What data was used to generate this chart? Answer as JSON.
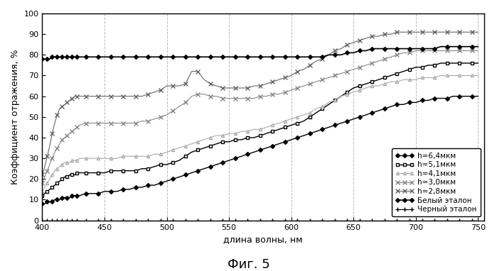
{
  "title": "Фиг. 5",
  "xlabel": "длина волны, нм",
  "ylabel": "Коэффициент отражения, %",
  "xlim": [
    400,
    755
  ],
  "ylim": [
    0,
    100
  ],
  "xticks": [
    400,
    450,
    500,
    550,
    600,
    650,
    700,
    750
  ],
  "yticks": [
    0,
    10,
    20,
    30,
    40,
    50,
    60,
    70,
    80,
    90,
    100
  ],
  "background_color": "#ffffff",
  "series": [
    {
      "label": "h=6,4мкм",
      "color": "#000000",
      "marker": "D",
      "markersize": 3,
      "linewidth": 1.0,
      "markerfacecolor": "#000000",
      "linestyle": "-",
      "points_x": [
        400,
        402,
        404,
        406,
        408,
        410,
        412,
        414,
        416,
        418,
        420,
        422,
        424,
        426,
        428,
        430,
        435,
        440,
        445,
        450,
        455,
        460,
        465,
        470,
        475,
        480,
        485,
        490,
        495,
        500,
        505,
        510,
        515,
        520,
        525,
        530,
        535,
        540,
        545,
        550,
        555,
        560,
        565,
        570,
        575,
        580,
        585,
        590,
        595,
        600,
        605,
        610,
        615,
        620,
        625,
        630,
        635,
        640,
        645,
        650,
        655,
        660,
        665,
        670,
        675,
        680,
        685,
        690,
        695,
        700,
        705,
        710,
        715,
        720,
        725,
        730,
        735,
        740,
        745,
        750
      ],
      "points_y": [
        8,
        8,
        9,
        9,
        9,
        10,
        10,
        10,
        11,
        11,
        11,
        11,
        12,
        12,
        12,
        12,
        13,
        13,
        13,
        14,
        14,
        14,
        15,
        15,
        16,
        16,
        17,
        17,
        18,
        19,
        20,
        21,
        22,
        23,
        24,
        25,
        26,
        27,
        28,
        29,
        30,
        31,
        32,
        33,
        34,
        35,
        36,
        37,
        38,
        39,
        40,
        41,
        42,
        43,
        44,
        45,
        46,
        47,
        48,
        49,
        50,
        51,
        52,
        53,
        54,
        55,
        56,
        56,
        57,
        57,
        58,
        58,
        59,
        59,
        59,
        60,
        60,
        60,
        60,
        60
      ]
    },
    {
      "label": "h=5,1мкм",
      "color": "#000000",
      "marker": "s",
      "markersize": 3,
      "linewidth": 1.0,
      "markerfacecolor": "white",
      "linestyle": "-",
      "points_x": [
        400,
        402,
        404,
        406,
        408,
        410,
        412,
        414,
        416,
        418,
        420,
        422,
        424,
        426,
        428,
        430,
        435,
        440,
        445,
        450,
        455,
        460,
        465,
        470,
        475,
        480,
        485,
        490,
        495,
        500,
        505,
        510,
        515,
        520,
        525,
        530,
        535,
        540,
        545,
        550,
        555,
        560,
        565,
        570,
        575,
        580,
        585,
        590,
        595,
        600,
        605,
        610,
        615,
        620,
        625,
        630,
        635,
        640,
        645,
        650,
        655,
        660,
        665,
        670,
        675,
        680,
        685,
        690,
        695,
        700,
        705,
        710,
        715,
        720,
        725,
        730,
        735,
        740,
        745,
        750
      ],
      "points_y": [
        12,
        13,
        14,
        15,
        16,
        17,
        18,
        19,
        20,
        21,
        21,
        22,
        22,
        22,
        23,
        23,
        23,
        23,
        23,
        23,
        24,
        24,
        24,
        24,
        24,
        25,
        25,
        26,
        27,
        27,
        28,
        29,
        31,
        33,
        34,
        35,
        36,
        37,
        38,
        38,
        39,
        39,
        40,
        40,
        41,
        42,
        43,
        44,
        45,
        46,
        47,
        48,
        50,
        52,
        54,
        56,
        58,
        60,
        62,
        64,
        65,
        66,
        67,
        68,
        69,
        70,
        71,
        72,
        73,
        74,
        74,
        75,
        75,
        76,
        76,
        76,
        76,
        76,
        76,
        76
      ]
    },
    {
      "label": "h=4,1мкм",
      "color": "#aaaaaa",
      "marker": "^",
      "markersize": 3,
      "linewidth": 0.8,
      "markerfacecolor": "white",
      "linestyle": "-",
      "points_x": [
        400,
        402,
        404,
        406,
        408,
        410,
        412,
        414,
        416,
        418,
        420,
        422,
        424,
        426,
        428,
        430,
        435,
        440,
        445,
        450,
        455,
        460,
        465,
        470,
        475,
        480,
        485,
        490,
        495,
        500,
        505,
        510,
        515,
        520,
        525,
        530,
        535,
        540,
        545,
        550,
        555,
        560,
        565,
        570,
        575,
        580,
        585,
        590,
        595,
        600,
        605,
        610,
        615,
        620,
        625,
        630,
        635,
        640,
        645,
        650,
        655,
        660,
        665,
        670,
        675,
        680,
        685,
        690,
        695,
        700,
        705,
        710,
        715,
        720,
        725,
        730,
        735,
        740,
        745,
        750
      ],
      "points_y": [
        14,
        16,
        18,
        20,
        22,
        24,
        25,
        26,
        27,
        28,
        28,
        28,
        29,
        29,
        29,
        30,
        30,
        30,
        30,
        30,
        30,
        30,
        31,
        31,
        31,
        31,
        31,
        32,
        32,
        33,
        34,
        35,
        36,
        37,
        38,
        39,
        40,
        41,
        41,
        42,
        42,
        43,
        43,
        44,
        44,
        45,
        46,
        47,
        48,
        49,
        50,
        51,
        52,
        54,
        55,
        57,
        58,
        60,
        61,
        62,
        63,
        64,
        65,
        65,
        66,
        67,
        67,
        68,
        68,
        68,
        69,
        69,
        69,
        70,
        70,
        70,
        70,
        70,
        70,
        70
      ]
    },
    {
      "label": "h=3,0мкм",
      "color": "#888888",
      "marker": "x",
      "markersize": 4,
      "linewidth": 0.8,
      "markerfacecolor": "#888888",
      "linestyle": "-",
      "points_x": [
        400,
        402,
        404,
        406,
        408,
        410,
        412,
        414,
        416,
        418,
        420,
        422,
        424,
        426,
        428,
        430,
        435,
        440,
        445,
        450,
        455,
        460,
        465,
        470,
        475,
        480,
        485,
        490,
        495,
        500,
        505,
        510,
        515,
        520,
        525,
        530,
        535,
        540,
        545,
        550,
        555,
        560,
        565,
        570,
        575,
        580,
        585,
        590,
        595,
        600,
        605,
        610,
        615,
        620,
        625,
        630,
        635,
        640,
        645,
        650,
        655,
        660,
        665,
        670,
        675,
        680,
        685,
        690,
        695,
        700,
        705,
        710,
        715,
        720,
        725,
        730,
        735,
        740,
        745,
        750
      ],
      "points_y": [
        18,
        21,
        24,
        27,
        30,
        33,
        35,
        37,
        39,
        40,
        41,
        42,
        43,
        44,
        45,
        46,
        47,
        47,
        47,
        47,
        47,
        47,
        47,
        47,
        47,
        48,
        48,
        49,
        50,
        51,
        53,
        55,
        57,
        60,
        61,
        61,
        60,
        60,
        59,
        59,
        59,
        59,
        59,
        59,
        60,
        60,
        61,
        61,
        62,
        63,
        64,
        65,
        66,
        67,
        68,
        69,
        70,
        71,
        72,
        73,
        74,
        75,
        76,
        77,
        78,
        79,
        80,
        81,
        81,
        82,
        82,
        82,
        82,
        82,
        82,
        82,
        82,
        82,
        82,
        82
      ]
    },
    {
      "label": "h=2,8мкм",
      "color": "#666666",
      "marker": "x",
      "markersize": 4,
      "linewidth": 0.8,
      "markerfacecolor": "#666666",
      "linestyle": "-",
      "points_x": [
        400,
        402,
        404,
        406,
        408,
        410,
        412,
        414,
        416,
        418,
        420,
        422,
        424,
        426,
        428,
        430,
        435,
        440,
        445,
        450,
        455,
        460,
        465,
        470,
        475,
        480,
        485,
        490,
        495,
        500,
        505,
        510,
        515,
        520,
        525,
        530,
        535,
        540,
        545,
        550,
        555,
        560,
        565,
        570,
        575,
        580,
        585,
        590,
        595,
        600,
        605,
        610,
        615,
        620,
        625,
        630,
        635,
        640,
        645,
        650,
        655,
        660,
        665,
        670,
        675,
        680,
        685,
        690,
        695,
        700,
        705,
        710,
        715,
        720,
        725,
        730,
        735,
        740,
        745,
        750
      ],
      "points_y": [
        22,
        26,
        31,
        36,
        42,
        47,
        51,
        54,
        55,
        56,
        57,
        58,
        59,
        60,
        60,
        60,
        60,
        60,
        60,
        60,
        60,
        60,
        60,
        60,
        60,
        60,
        61,
        62,
        63,
        65,
        65,
        65,
        66,
        72,
        72,
        68,
        66,
        65,
        64,
        64,
        64,
        64,
        64,
        65,
        65,
        66,
        67,
        68,
        69,
        70,
        72,
        73,
        75,
        77,
        78,
        80,
        82,
        83,
        85,
        86,
        87,
        88,
        89,
        89,
        90,
        90,
        91,
        91,
        91,
        91,
        91,
        91,
        91,
        91,
        91,
        91,
        91,
        91,
        91,
        91
      ]
    },
    {
      "label": "Белый эталон",
      "color": "#000000",
      "marker": "D",
      "markersize": 3,
      "linewidth": 1.2,
      "markerfacecolor": "#000000",
      "linestyle": "-",
      "points_x": [
        400,
        402,
        404,
        406,
        408,
        410,
        412,
        414,
        416,
        418,
        420,
        422,
        424,
        426,
        428,
        430,
        435,
        440,
        445,
        450,
        455,
        460,
        465,
        470,
        475,
        480,
        485,
        490,
        495,
        500,
        505,
        510,
        515,
        520,
        525,
        530,
        535,
        540,
        545,
        550,
        555,
        560,
        565,
        570,
        575,
        580,
        585,
        590,
        595,
        600,
        605,
        610,
        615,
        620,
        625,
        630,
        635,
        640,
        645,
        650,
        655,
        660,
        665,
        670,
        675,
        680,
        685,
        690,
        695,
        700,
        705,
        710,
        715,
        720,
        725,
        730,
        735,
        740,
        745,
        750
      ],
      "points_y": [
        78,
        78,
        78,
        78,
        79,
        79,
        79,
        79,
        79,
        79,
        79,
        79,
        79,
        79,
        79,
        79,
        79,
        79,
        79,
        79,
        79,
        79,
        79,
        79,
        79,
        79,
        79,
        79,
        79,
        79,
        79,
        79,
        79,
        79,
        79,
        79,
        79,
        79,
        79,
        79,
        79,
        79,
        79,
        79,
        79,
        79,
        79,
        79,
        79,
        79,
        79,
        79,
        79,
        79,
        79,
        80,
        80,
        80,
        81,
        81,
        82,
        82,
        83,
        83,
        83,
        83,
        83,
        83,
        83,
        83,
        83,
        83,
        83,
        84,
        84,
        84,
        84,
        84,
        84,
        84
      ]
    },
    {
      "label": "Черный эталон",
      "color": "#000000",
      "marker": "+",
      "markersize": 4,
      "linewidth": 0.8,
      "markerfacecolor": "#000000",
      "linestyle": "-",
      "points_x": [
        400,
        402,
        404,
        406,
        408,
        410,
        412,
        414,
        416,
        418,
        420,
        422,
        424,
        426,
        428,
        430,
        435,
        440,
        445,
        450,
        455,
        460,
        465,
        470,
        475,
        480,
        485,
        490,
        495,
        500,
        505,
        510,
        515,
        520,
        525,
        530,
        535,
        540,
        545,
        550,
        555,
        560,
        565,
        570,
        575,
        580,
        585,
        590,
        595,
        600,
        605,
        610,
        615,
        620,
        625,
        630,
        635,
        640,
        645,
        650,
        655,
        660,
        665,
        670,
        675,
        680,
        685,
        690,
        695,
        700,
        705,
        710,
        715,
        720,
        725,
        730,
        735,
        740,
        745,
        750
      ],
      "points_y": [
        0,
        0,
        0,
        0,
        0,
        0,
        0,
        0,
        0,
        0,
        0,
        0,
        0,
        0,
        0,
        0,
        0,
        0,
        0,
        0,
        0,
        0,
        0,
        0,
        0,
        0,
        0,
        0,
        0,
        0,
        0,
        0,
        0,
        0,
        0,
        0,
        0,
        0,
        0,
        0,
        0,
        0,
        0,
        0,
        0,
        0,
        0,
        0,
        0,
        0,
        0,
        0,
        0,
        0,
        0,
        0,
        0,
        0,
        0,
        0,
        0,
        0,
        0,
        0,
        0,
        0,
        0,
        0,
        0,
        0,
        0,
        0,
        0,
        0,
        0,
        0,
        0,
        0,
        0,
        0
      ]
    }
  ]
}
